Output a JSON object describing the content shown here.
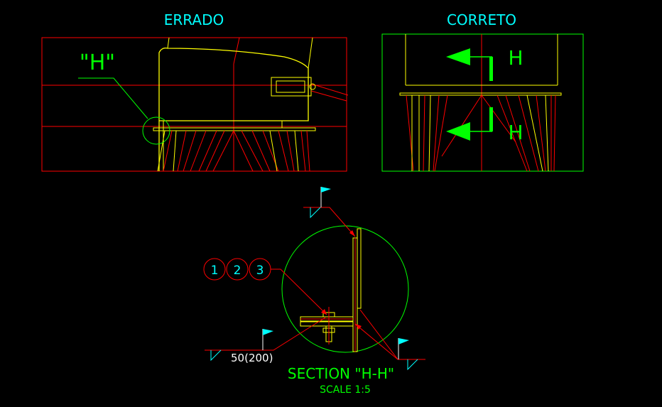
{
  "views": {
    "wrong": {
      "title": "ERRADO",
      "detail_callout": "\"H\""
    },
    "right": {
      "title": "CORRETO",
      "section_mark_top": "H",
      "section_mark_bottom": "H"
    }
  },
  "section": {
    "title": "SECTION \"H-H\"",
    "scale": "SCALE 1:5",
    "item_balloons": [
      "1",
      "2",
      "3"
    ],
    "weld_note": "50(200)"
  },
  "colors": {
    "background": "#000000",
    "frame": "#ff0000",
    "structure": "#ffff00",
    "title": "#00ffff",
    "callout": "#00ff00",
    "weld_flag": "#00ffff"
  }
}
